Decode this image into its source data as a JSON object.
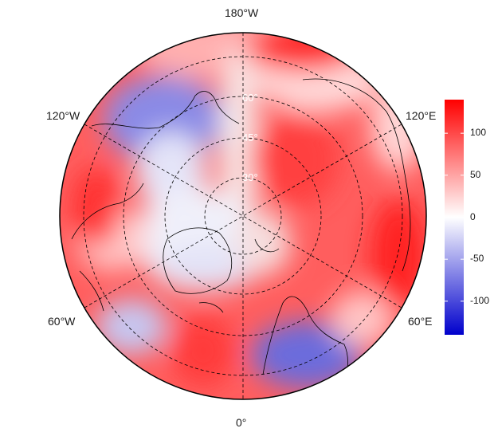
{
  "map": {
    "projection": "north-polar-stereographic",
    "longitude_labels": {
      "top": "180°W",
      "upper_left": "120°W",
      "upper_right": "120°E",
      "lower_left": "60°W",
      "lower_right": "60°E",
      "bottom": "0°"
    },
    "latitude_labels": [
      "30°",
      "45°",
      "60°"
    ],
    "latitude_label_color": "#ffffff",
    "graticule_style": "dashed"
  },
  "colorbar": {
    "ticks": [
      "100",
      "50",
      "0",
      "-50",
      "-100"
    ],
    "tick_values": [
      100,
      50,
      0,
      -50,
      -100
    ],
    "range": [
      -140,
      140
    ],
    "colors": {
      "low": "#0000cc",
      "mid": "#ffffff",
      "high": "#ff0000"
    }
  }
}
